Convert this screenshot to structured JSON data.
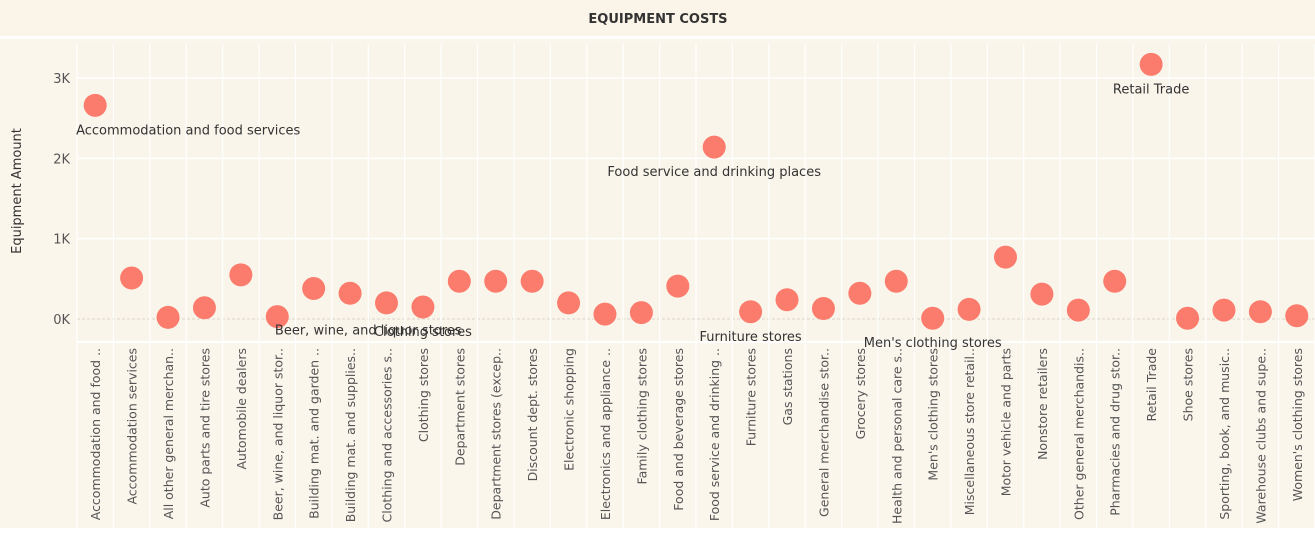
{
  "chart_data": {
    "type": "scatter",
    "title": "EQUIPMENT COSTS",
    "ylabel": "Equipment Amount",
    "xlabel": "",
    "ylim": [
      -230,
      3450
    ],
    "yticks": [
      0,
      1000,
      2000,
      3000
    ],
    "ytick_labels": [
      "0K",
      "1K",
      "2K",
      "3K"
    ],
    "marker_color": "#fb7b6c",
    "grid": true,
    "categories": [
      "Accommodation and food ..",
      "Accommodation services",
      "All other general merchan..",
      "Auto parts and tire stores",
      "Automobile dealers",
      "Beer, wine, and liquor stor..",
      "Building mat. and garden ..",
      "Building mat. and supplies..",
      "Clothing and accessories s..",
      "Clothing stores",
      "Department stores",
      "Department stores (excep..",
      "Discount dept. stores",
      "Electronic shopping",
      "Electronics and appliance ..",
      "Family clothing stores",
      "Food and beverage stores",
      "Food service and drinking ..",
      "Furniture stores",
      "Gas stations",
      "General merchandise stor..",
      "Grocery stores",
      "Health and personal care s..",
      "Men's clothing stores",
      "Miscellaneous store retail..",
      "Motor vehicle and parts",
      "Nonstore retailers",
      "Other general merchandis..",
      "Pharmacies and drug stor..",
      "Retail Trade",
      "Shoe stores",
      "Sporting, book, and music..",
      "Warehouse clubs and supe..",
      "Women's clothing stores"
    ],
    "values": [
      2660,
      510,
      20,
      140,
      550,
      30,
      380,
      320,
      200,
      150,
      470,
      470,
      470,
      200,
      60,
      80,
      410,
      2140,
      90,
      240,
      130,
      320,
      470,
      10,
      120,
      770,
      310,
      110,
      470,
      3170,
      10,
      110,
      90,
      40
    ],
    "annotations": [
      {
        "index": 0,
        "label": "Accommodation and food services",
        "position": "below"
      },
      {
        "index": 5,
        "label": "Beer, wine, and liquor stores",
        "position": "right"
      },
      {
        "index": 9,
        "label": "Clothing stores",
        "position": "below"
      },
      {
        "index": 17,
        "label": "Food service and drinking places",
        "position": "below"
      },
      {
        "index": 18,
        "label": "Furniture stores",
        "position": "below"
      },
      {
        "index": 23,
        "label": "Men's clothing stores",
        "position": "below"
      },
      {
        "index": 29,
        "label": "Retail Trade",
        "position": "below"
      }
    ]
  }
}
